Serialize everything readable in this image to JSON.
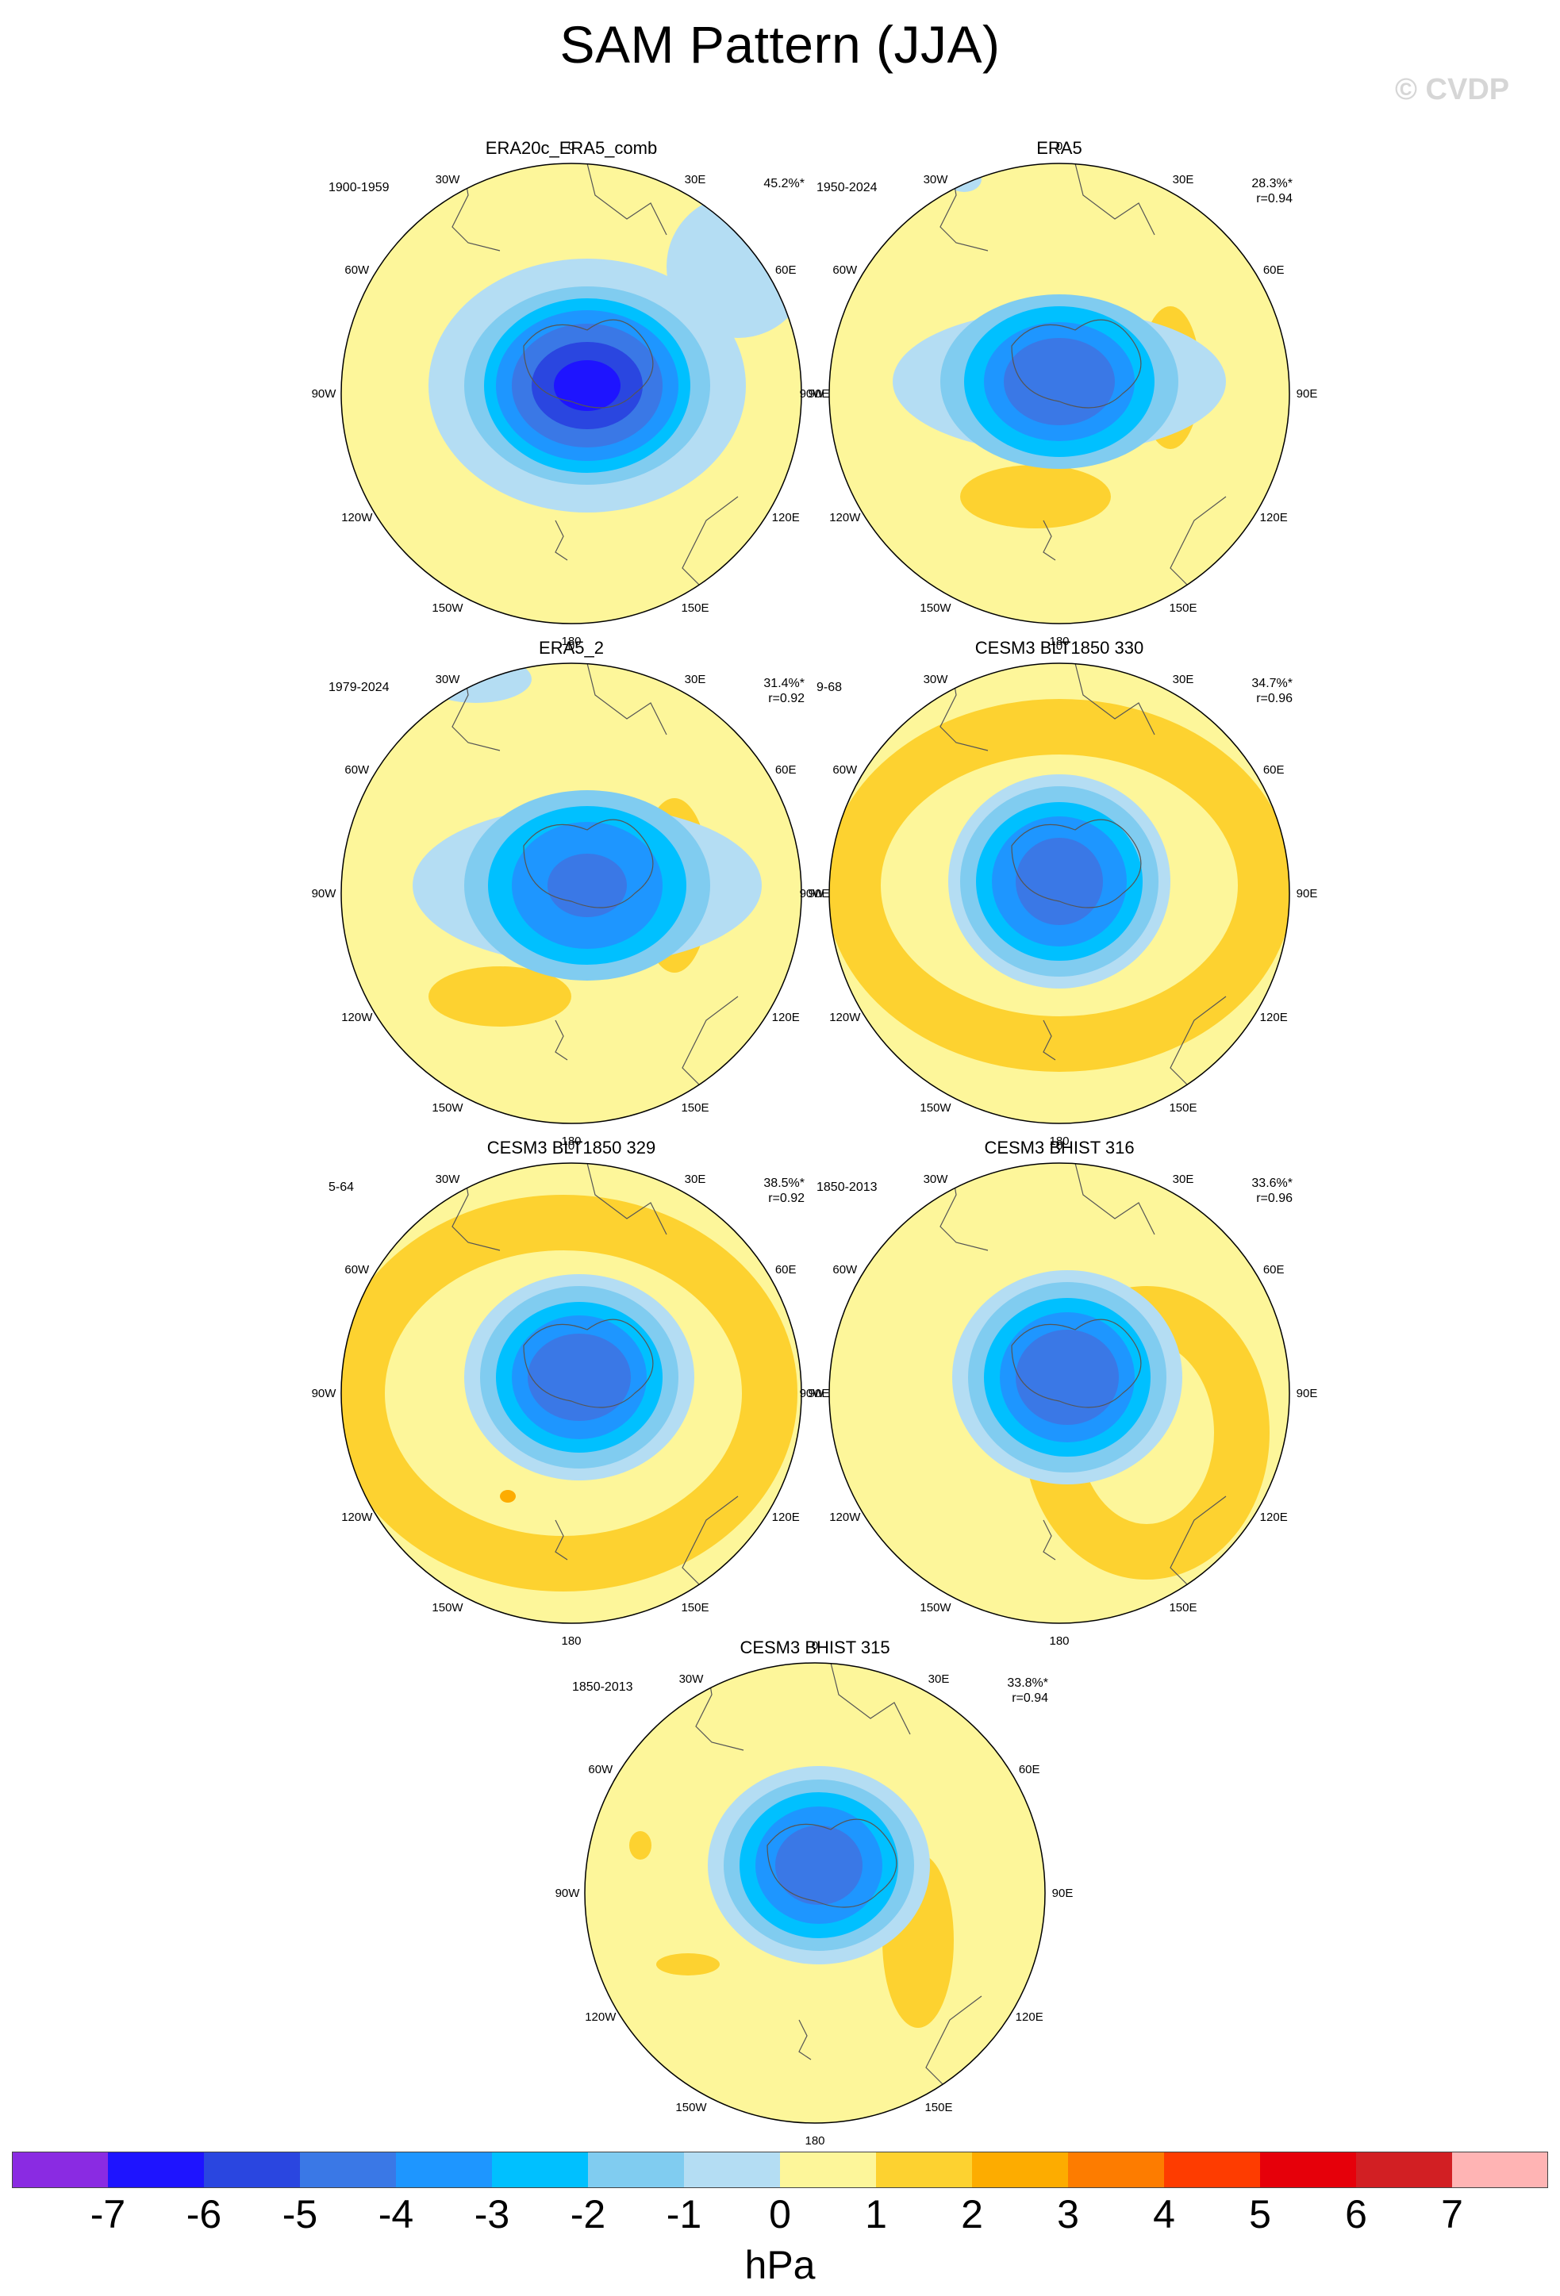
{
  "title": "SAM Pattern (JJA)",
  "watermark": "© CVDP",
  "units": "hPa",
  "lon_labels": [
    "0",
    "30E",
    "60E",
    "90E",
    "120E",
    "150E",
    "180",
    "150W",
    "120W",
    "90W",
    "60W",
    "30W"
  ],
  "colorbar": {
    "colors": [
      "#8a2be2",
      "#1e14ff",
      "#2a46e0",
      "#3a78e6",
      "#1e96ff",
      "#00c0ff",
      "#80ccf0",
      "#b4ddf3",
      "#fdf69a",
      "#fdd230",
      "#fdac00",
      "#fd7c00",
      "#fe3c00",
      "#e6000a",
      "#d21f23",
      "#ffb4b4"
    ],
    "labels": [
      "-7",
      "-6",
      "-5",
      "-4",
      "-3",
      "-2",
      "-1",
      "0",
      "1",
      "2",
      "3",
      "4",
      "5",
      "6",
      "7"
    ]
  },
  "panels": [
    {
      "title": "ERA20c_ERA5_comb",
      "period": "1900-1959",
      "pct": "45.2%*",
      "r": ""
    },
    {
      "title": "ERA5",
      "period": "1950-2024",
      "pct": "28.3%*",
      "r": "r=0.94"
    },
    {
      "title": "ERA5_2",
      "period": "1979-2024",
      "pct": "31.4%*",
      "r": "r=0.92"
    },
    {
      "title": "CESM3 BLT1850 330",
      "period": "9-68",
      "pct": "34.7%*",
      "r": "r=0.96"
    },
    {
      "title": "CESM3 BLT1850 329",
      "period": "5-64",
      "pct": "38.5%*",
      "r": "r=0.92"
    },
    {
      "title": "CESM3 BHIST 316",
      "period": "1850-2013",
      "pct": "33.6%*",
      "r": "r=0.96"
    },
    {
      "title": "CESM3 BHIST 315",
      "period": "1850-2013",
      "pct": "33.8%*",
      "r": "r=0.94"
    }
  ]
}
